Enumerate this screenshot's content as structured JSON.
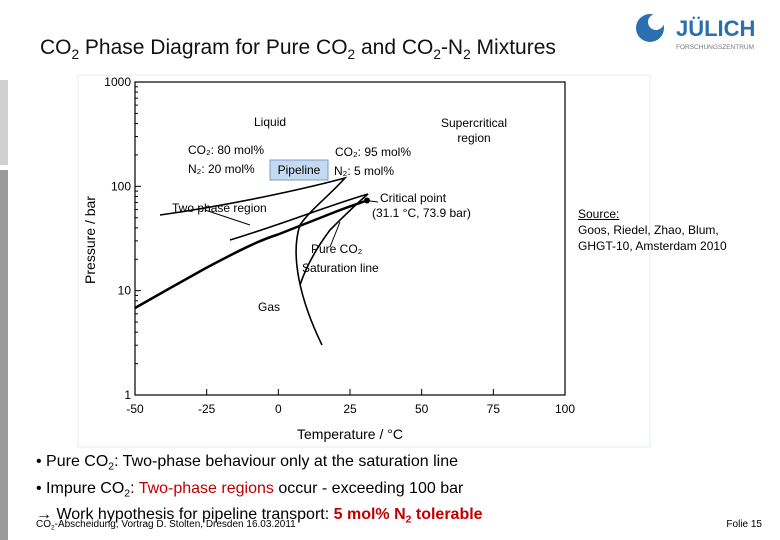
{
  "header": {
    "title": [
      "CO",
      "2",
      " Phase Diagram for Pure CO",
      "2",
      " and CO",
      "2",
      "-N",
      "2",
      " Mixtures"
    ],
    "logo": "JÜLICH",
    "logo_subtitle": "FORSCHUNGSZENTRUM"
  },
  "figure": {
    "xlim": [
      -50,
      100
    ],
    "xticks": [
      -50,
      -25,
      0,
      25,
      50,
      75,
      100
    ],
    "ylim": [
      1,
      1000
    ],
    "yticks": [
      1,
      10,
      100,
      1000
    ],
    "y_log": true,
    "x_label": "Temperature / °C",
    "y_label": "Pressure / bar",
    "liquid": "Liquid",
    "supercritical": [
      "Supercritical",
      "region"
    ],
    "mix80": [
      "CO₂: 80 mol%",
      "N₂: 20 mol%"
    ],
    "mix95": [
      "CO₂: 95 mol%",
      "N₂: 5 mol%"
    ],
    "pipeline": "Pipeline",
    "two_phase": "Two phase region",
    "critical": [
      "Critical point",
      "(31.1 °C, 73.9 bar)"
    ],
    "pure": [
      "Pure CO₂",
      "Saturation line"
    ],
    "gas": "Gas"
  },
  "source": [
    "Source:",
    "Goos, Riedel, Zhao, Blum,",
    "GHGT-10, Amsterdam 2010"
  ],
  "bullets": [
    [
      "• Pure CO",
      "2",
      ": Two-phase behaviour only at the saturation line"
    ],
    [
      "• Impure CO",
      "2",
      ": ",
      "Two-phase regions",
      " occur - exceeding 100 bar"
    ],
    [
      "→ Work hypothesis for pipeline transport: ",
      "5 mol% N",
      "2",
      " tolerable"
    ]
  ],
  "footer": [
    "CO",
    "2",
    "-Abscheidung, Vortrag D. Stolten, Dresden 16.03.2011"
  ],
  "page": "Folie 15"
}
